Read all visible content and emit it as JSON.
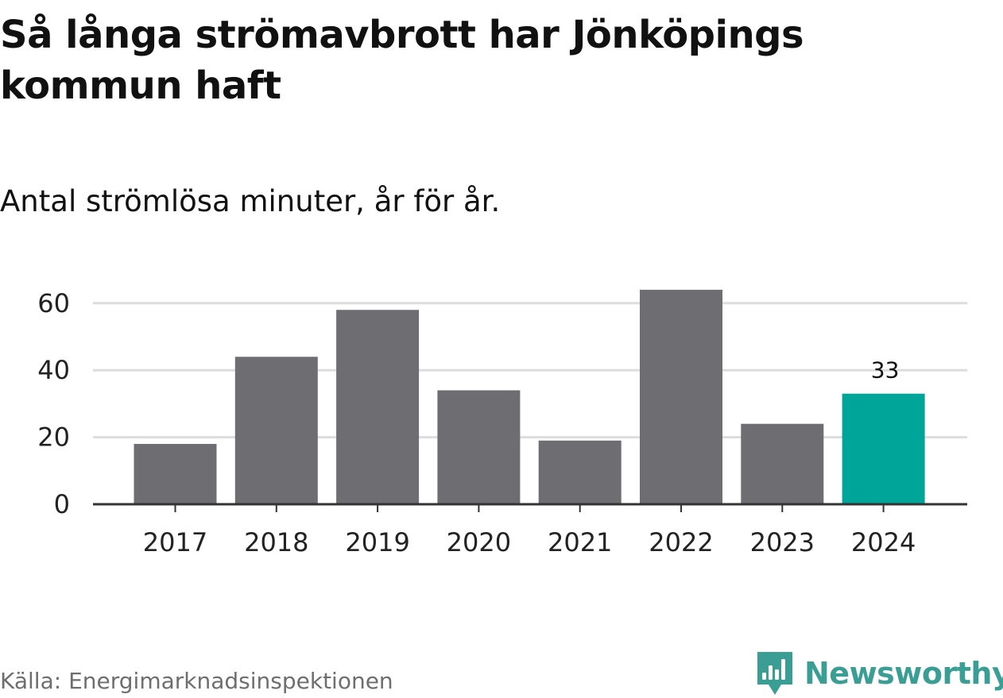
{
  "header": {
    "title": "Så långa strömavbrott har Jönköpings kommun haft",
    "subtitle": "Antal strömlösa minuter, år för år."
  },
  "footer": {
    "source": "Källa: Energimarknadsinspektionen",
    "brand": "Newsworthy"
  },
  "colors": {
    "bar": "#6e6d72",
    "highlight": "#00a59a",
    "grid": "#dddddd",
    "axis": "#333333",
    "tick_text": "#222222",
    "brand": "#3a9e95"
  },
  "chart_data": {
    "type": "bar",
    "title": "Så långa strömavbrott har Jönköpings kommun haft",
    "subtitle": "Antal strömlösa minuter, år för år.",
    "categories": [
      "2017",
      "2018",
      "2019",
      "2020",
      "2021",
      "2022",
      "2023",
      "2024"
    ],
    "values": [
      18,
      44,
      58,
      34,
      19,
      64,
      24,
      33
    ],
    "highlight_index": 7,
    "data_labels": [
      {
        "index": 7,
        "text": "33"
      }
    ],
    "xlabel": "",
    "ylabel": "",
    "ylim": [
      0,
      65
    ],
    "yticks": [
      0,
      20,
      40,
      60
    ],
    "grid": true,
    "legend": "none"
  }
}
